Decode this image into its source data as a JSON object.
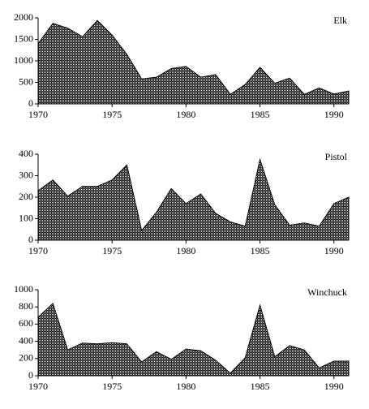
{
  "chart_data": [
    {
      "type": "area",
      "title": "Elk",
      "color": "#000000",
      "x": [
        1970,
        1971,
        1972,
        1973,
        1974,
        1975,
        1976,
        1977,
        1978,
        1979,
        1980,
        1981,
        1982,
        1983,
        1984,
        1985,
        1986,
        1987,
        1988,
        1989,
        1990,
        1991
      ],
      "values": [
        1400,
        1870,
        1760,
        1560,
        1940,
        1600,
        1150,
        580,
        620,
        820,
        870,
        620,
        680,
        220,
        450,
        850,
        480,
        600,
        220,
        370,
        230,
        300
      ],
      "xlim": [
        1970,
        1991
      ],
      "xticks": [
        1970,
        1975,
        1980,
        1985,
        1990
      ],
      "ylim": [
        0,
        2000
      ],
      "yticks": [
        0,
        500,
        1000,
        1500,
        2000
      ]
    },
    {
      "type": "area",
      "title": "Pistol",
      "color": "#000000",
      "x": [
        1970,
        1971,
        1972,
        1973,
        1974,
        1975,
        1976,
        1977,
        1978,
        1979,
        1980,
        1981,
        1982,
        1983,
        1984,
        1985,
        1986,
        1987,
        1988,
        1989,
        1990,
        1991
      ],
      "values": [
        230,
        280,
        205,
        250,
        250,
        280,
        350,
        45,
        130,
        240,
        170,
        215,
        125,
        85,
        65,
        375,
        165,
        70,
        80,
        65,
        170,
        200
      ],
      "xlim": [
        1970,
        1991
      ],
      "xticks": [
        1970,
        1975,
        1980,
        1985,
        1990
      ],
      "ylim": [
        0,
        400
      ],
      "yticks": [
        0,
        100,
        200,
        300,
        400
      ]
    },
    {
      "type": "area",
      "title": "Winchuck",
      "color": "#000000",
      "x": [
        1970,
        1971,
        1972,
        1973,
        1974,
        1975,
        1976,
        1977,
        1978,
        1979,
        1980,
        1981,
        1982,
        1983,
        1984,
        1985,
        1986,
        1987,
        1988,
        1989,
        1990,
        1991
      ],
      "values": [
        680,
        840,
        300,
        380,
        370,
        385,
        370,
        160,
        280,
        190,
        310,
        290,
        180,
        30,
        210,
        820,
        220,
        350,
        300,
        90,
        170,
        170
      ],
      "xlim": [
        1970,
        1991
      ],
      "xticks": [
        1970,
        1975,
        1980,
        1985,
        1990
      ],
      "ylim": [
        0,
        1000
      ],
      "yticks": [
        0,
        200,
        400,
        600,
        800,
        1000
      ]
    }
  ]
}
